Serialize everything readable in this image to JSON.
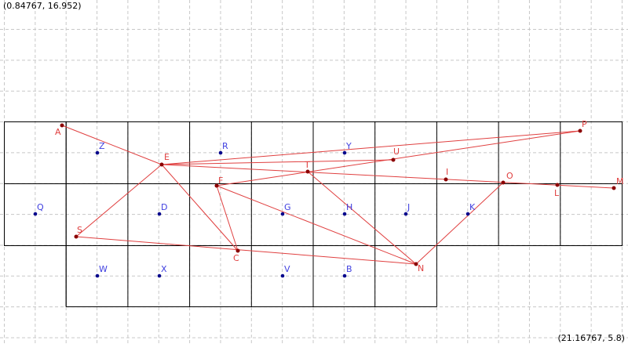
{
  "corner_labels": {
    "top_left": "(0.84767, 16.952)",
    "bottom_right": "(21.16767, 5.8)"
  },
  "points": [
    "A",
    "E",
    "F",
    "T",
    "U",
    "P",
    "I",
    "O",
    "L",
    "M",
    "S",
    "C",
    "N"
  ],
  "free_points": [
    "Z",
    "R",
    "Y",
    "Q",
    "D",
    "G",
    "H",
    "J",
    "K",
    "W",
    "X",
    "V",
    "B"
  ]
}
